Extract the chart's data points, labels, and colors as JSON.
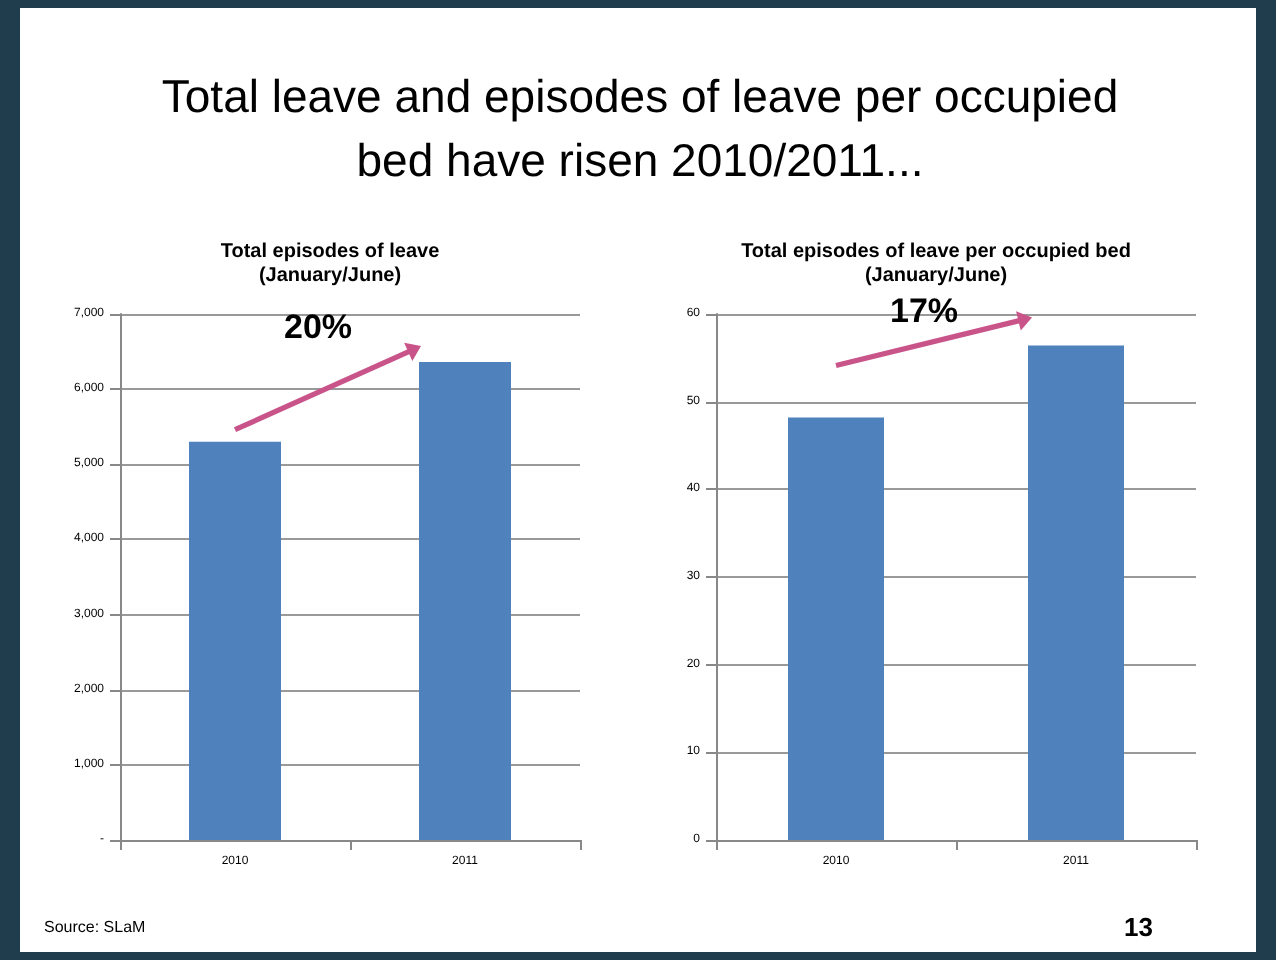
{
  "chart_data": [
    {
      "type": "other",
      "title": "Total leave and episodes of leave per occupied bed have risen 2010/2011...",
      "annotations": [
        "Source: SLaM",
        "13"
      ]
    },
    {
      "type": "bar",
      "title": "Total episodes of leave\n(January/June)",
      "categories": [
        "2010",
        "2011"
      ],
      "values": [
        5300,
        6360
      ],
      "color": "#4f81bd",
      "ylim": [
        0,
        7000
      ],
      "yticks": [
        {
          "value": 0,
          "label": "-"
        },
        {
          "value": 1000,
          "label": "1,000"
        },
        {
          "value": 2000,
          "label": "2,000"
        },
        {
          "value": 3000,
          "label": "3,000"
        },
        {
          "value": 4000,
          "label": "4,000"
        },
        {
          "value": 5000,
          "label": "5,000"
        },
        {
          "value": 6000,
          "label": "6,000"
        },
        {
          "value": 7000,
          "label": "7,000"
        }
      ],
      "grid": "y",
      "annotations": [
        "20%"
      ]
    },
    {
      "type": "bar",
      "title": "Total episodes of leave per occupied bed\n(January/June)",
      "categories": [
        "2010",
        "2011"
      ],
      "values": [
        48.2,
        56.4
      ],
      "color": "#4f81bd",
      "ylim": [
        0,
        60
      ],
      "yticks": [
        0,
        10,
        20,
        30,
        40,
        50,
        60
      ],
      "grid": "y",
      "annotations": [
        "17%"
      ]
    }
  ]
}
